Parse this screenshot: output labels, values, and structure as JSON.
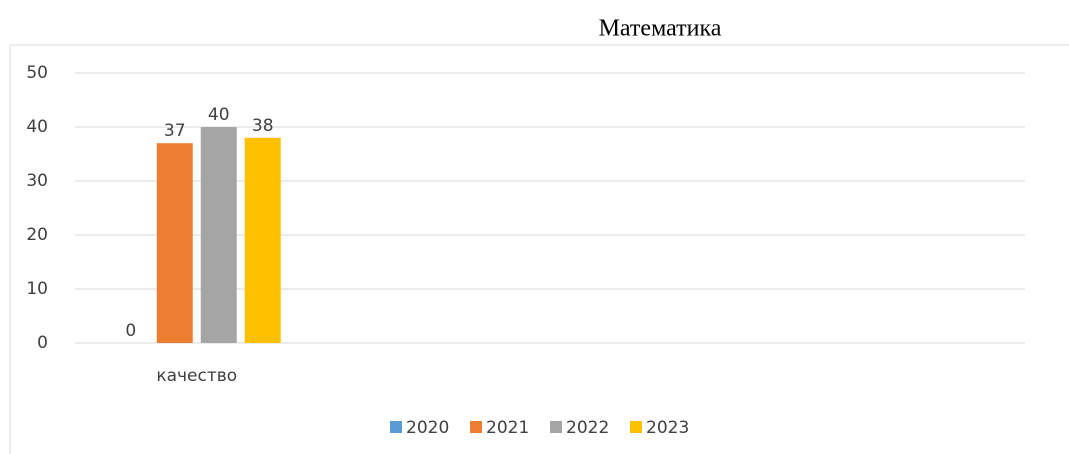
{
  "chart_data": {
    "type": "bar",
    "title": "Математика",
    "categories": [
      "качество",
      null,
      null,
      null
    ],
    "series": [
      {
        "name": "2020",
        "color": "#5b9bd5",
        "values": [
          0,
          null,
          null,
          null
        ]
      },
      {
        "name": "2021",
        "color": "#ed7d31",
        "values": [
          37,
          null,
          null,
          null
        ]
      },
      {
        "name": "2022",
        "color": "#a5a5a5",
        "values": [
          40,
          null,
          null,
          null
        ]
      },
      {
        "name": "2023",
        "color": "#ffc000",
        "values": [
          38,
          null,
          null,
          null
        ]
      }
    ],
    "ylim": [
      0,
      50
    ],
    "yticks": [
      0,
      10,
      20,
      30,
      40,
      50
    ],
    "grid": true,
    "legend": "bottom"
  }
}
